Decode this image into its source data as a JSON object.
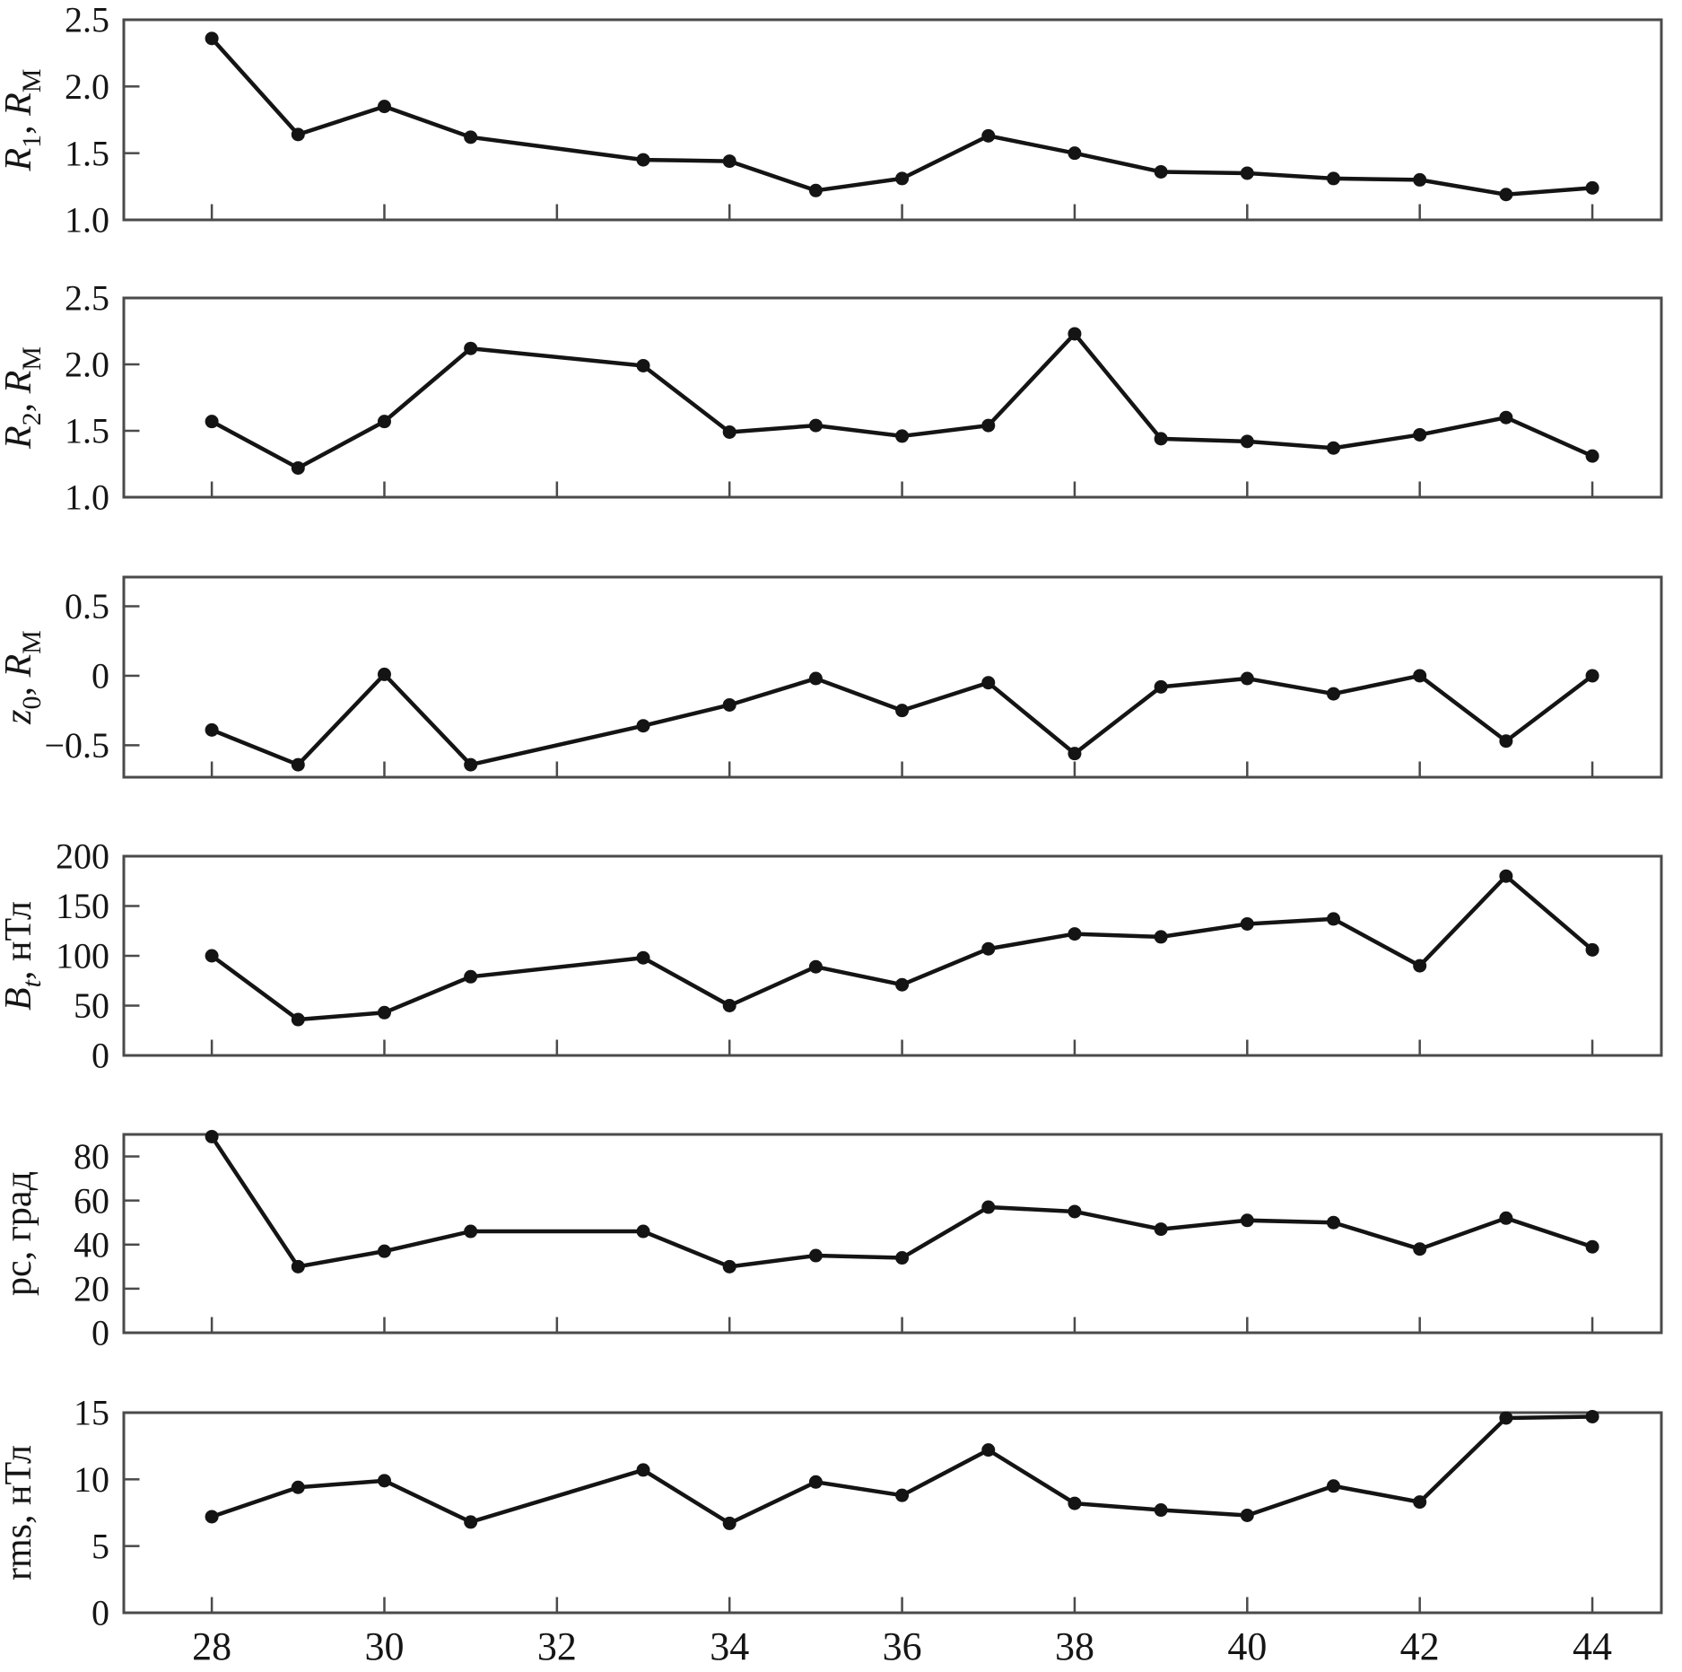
{
  "chart_data": {
    "type": "line",
    "title": "",
    "x_axis_label": "",
    "x": [
      28,
      29,
      30,
      31,
      33,
      34,
      35,
      36,
      37,
      38,
      39,
      40,
      41,
      42,
      43,
      44
    ],
    "xlim": [
      26.98,
      44.8
    ],
    "xticks": [
      28,
      30,
      32,
      34,
      36,
      38,
      40,
      42,
      44
    ],
    "xtick_labels": [
      "28",
      "30",
      "32",
      "34",
      "36",
      "38",
      "40",
      "42",
      "44"
    ],
    "line_color": "#141414",
    "frame_color": "#4a4a4a",
    "marker": "filled-circle",
    "grid": false,
    "legend": "none",
    "panels": [
      {
        "id": "r1",
        "ylabel_text": "R1, RM",
        "ylabel_segments": [
          {
            "text": "R",
            "italic": true
          },
          {
            "text": "1",
            "sub": true
          },
          {
            "text": ", "
          },
          {
            "text": "R",
            "italic": true
          },
          {
            "text": "M",
            "sub": true
          }
        ],
        "ylim": [
          1.0,
          2.5
        ],
        "yticks": [
          {
            "v": 1.0,
            "label": "1.0"
          },
          {
            "v": 1.5,
            "label": "1.5"
          },
          {
            "v": 2.0,
            "label": "2.0"
          },
          {
            "v": 2.5,
            "label": "2.5"
          }
        ],
        "values": [
          2.36,
          1.64,
          1.85,
          1.62,
          1.45,
          1.44,
          1.22,
          1.31,
          1.63,
          1.5,
          1.36,
          1.35,
          1.31,
          1.3,
          1.19,
          1.24
        ]
      },
      {
        "id": "r2",
        "ylabel_text": "R2, RM",
        "ylabel_segments": [
          {
            "text": "R",
            "italic": true
          },
          {
            "text": "2",
            "sub": true
          },
          {
            "text": ", "
          },
          {
            "text": "R",
            "italic": true
          },
          {
            "text": "M",
            "sub": true
          }
        ],
        "ylim": [
          1.0,
          2.5
        ],
        "yticks": [
          {
            "v": 1.0,
            "label": "1.0"
          },
          {
            "v": 1.5,
            "label": "1.5"
          },
          {
            "v": 2.0,
            "label": "2.0"
          },
          {
            "v": 2.5,
            "label": "2.5"
          }
        ],
        "values": [
          1.57,
          1.22,
          1.57,
          2.12,
          1.99,
          1.49,
          1.54,
          1.46,
          1.54,
          2.23,
          1.44,
          1.42,
          1.37,
          1.47,
          1.6,
          1.31
        ]
      },
      {
        "id": "z0",
        "ylabel_text": "z0, RM",
        "ylabel_segments": [
          {
            "text": "z",
            "italic": true
          },
          {
            "text": "0",
            "sub": true
          },
          {
            "text": ", "
          },
          {
            "text": "R",
            "italic": true
          },
          {
            "text": "M",
            "sub": true
          }
        ],
        "ylim": [
          -0.73,
          0.71
        ],
        "yticks": [
          {
            "v": -0.5,
            "label": "−0.5"
          },
          {
            "v": 0,
            "label": "0"
          },
          {
            "v": 0.5,
            "label": "0.5"
          }
        ],
        "values": [
          -0.39,
          -0.64,
          0.01,
          -0.64,
          -0.36,
          -0.21,
          -0.02,
          -0.25,
          -0.05,
          -0.56,
          -0.08,
          -0.02,
          -0.13,
          0.0,
          -0.47,
          0.0
        ]
      },
      {
        "id": "bt",
        "ylabel_text": "Bt, нТл",
        "ylabel_segments": [
          {
            "text": "B",
            "italic": true
          },
          {
            "text": "t",
            "sub": true,
            "italic": true
          },
          {
            "text": ", нТл"
          }
        ],
        "ylim": [
          0,
          200
        ],
        "yticks": [
          {
            "v": 0,
            "label": "0"
          },
          {
            "v": 50,
            "label": "50"
          },
          {
            "v": 100,
            "label": "100"
          },
          {
            "v": 150,
            "label": "150"
          },
          {
            "v": 200,
            "label": "200"
          }
        ],
        "values": [
          100,
          36,
          43,
          79,
          98,
          50,
          89,
          71,
          107,
          122,
          119,
          132,
          137,
          90,
          180,
          106
        ]
      },
      {
        "id": "pc",
        "ylabel_text": "pc, град",
        "ylabel_segments": [
          {
            "text": "pc, град"
          }
        ],
        "ylim": [
          0,
          90
        ],
        "yticks": [
          {
            "v": 0,
            "label": "0"
          },
          {
            "v": 20,
            "label": "20"
          },
          {
            "v": 40,
            "label": "40"
          },
          {
            "v": 60,
            "label": "60"
          },
          {
            "v": 80,
            "label": "80"
          }
        ],
        "values": [
          89,
          30,
          37,
          46,
          46,
          30,
          35,
          34,
          57,
          55,
          47,
          51,
          50,
          38,
          52,
          39
        ]
      },
      {
        "id": "rms",
        "ylabel_text": "rms, нТл",
        "ylabel_segments": [
          {
            "text": "rms, нТл"
          }
        ],
        "ylim": [
          0,
          15
        ],
        "yticks": [
          {
            "v": 0,
            "label": "0"
          },
          {
            "v": 5,
            "label": "5"
          },
          {
            "v": 10,
            "label": "10"
          },
          {
            "v": 15,
            "label": "15"
          }
        ],
        "values": [
          7.2,
          9.4,
          9.9,
          6.8,
          10.7,
          6.7,
          9.8,
          8.8,
          12.2,
          8.2,
          7.7,
          7.3,
          9.5,
          8.3,
          14.6,
          14.7
        ]
      }
    ]
  }
}
